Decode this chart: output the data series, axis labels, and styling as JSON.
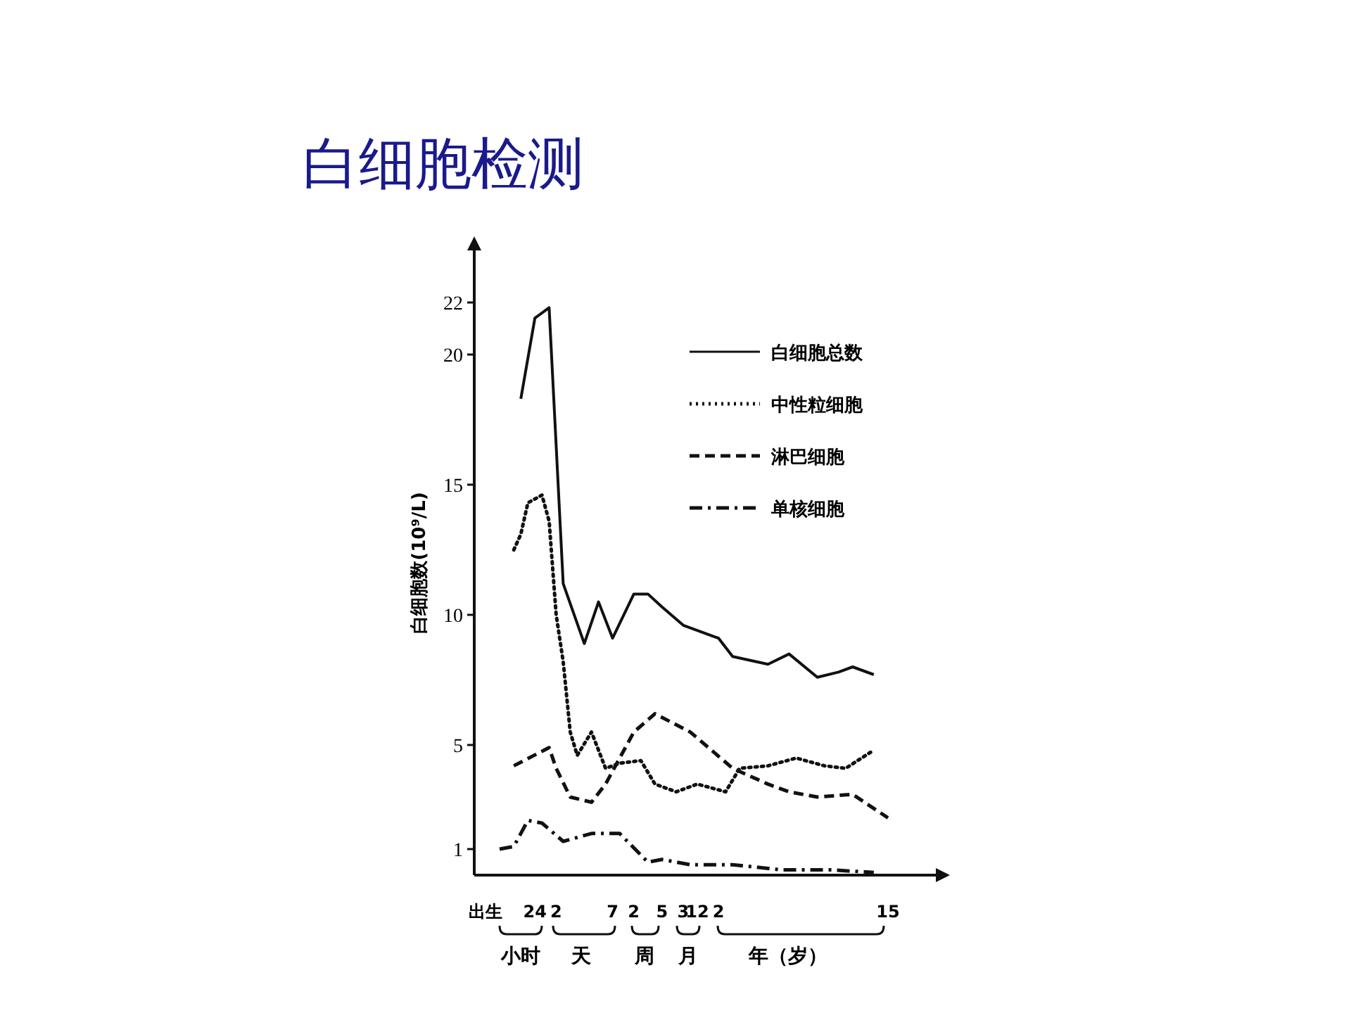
{
  "chart_data": {
    "type": "line",
    "title": "白细胞检测",
    "ylabel": "白细胞数(10⁹/L)",
    "categories": [
      "出生",
      null,
      null,
      null,
      null,
      null,
      null,
      "24",
      null,
      null,
      "2",
      null,
      null,
      null,
      null,
      null,
      null,
      null,
      "7",
      null,
      null,
      "2",
      null,
      null,
      null,
      "5",
      null,
      null,
      "3",
      null,
      "12",
      null,
      null,
      "2",
      null,
      null,
      null,
      null,
      null,
      null,
      null,
      null,
      null,
      null,
      null,
      null,
      null,
      null,
      null,
      null,
      null,
      null,
      null,
      null,
      null,
      null,
      null,
      "15",
      null
    ],
    "ylim": [
      0,
      24
    ],
    "yticks": [
      1,
      5,
      10,
      15,
      20,
      22
    ],
    "annotations": [
      "小时",
      "天",
      "周",
      "月",
      "年（岁）"
    ],
    "legend": "top right",
    "grid": false,
    "series": [
      {
        "name": "白细胞总数",
        "color": "#111111",
        "line_style": "solid",
        "values": [
          null,
          null,
          null,
          null,
          null,
          18.3,
          null,
          21.4,
          null,
          21.8,
          null,
          11.2,
          null,
          null,
          8.9,
          null,
          10.5,
          null,
          9.1,
          null,
          null,
          10.8,
          null,
          10.8,
          null,
          10.3,
          null,
          null,
          9.6,
          null,
          null,
          null,
          null,
          9.1,
          null,
          8.4,
          null,
          null,
          null,
          null,
          8.1,
          null,
          null,
          8.5,
          null,
          null,
          null,
          7.6,
          null,
          null,
          7.8,
          null,
          8.0,
          null,
          null,
          7.7,
          null,
          null,
          null
        ]
      },
      {
        "name": "中性粒细胞",
        "color": "#111111",
        "line_style": "dotted",
        "values": [
          null,
          null,
          null,
          null,
          12.5,
          13.1,
          14.3,
          null,
          14.6,
          13.6,
          10.0,
          8.2,
          5.5,
          4.6,
          null,
          5.5,
          null,
          4.1,
          null,
          4.3,
          null,
          null,
          4.4,
          null,
          3.5,
          null,
          null,
          3.2,
          null,
          null,
          3.5,
          null,
          null,
          null,
          3.2,
          null,
          4.1,
          null,
          null,
          null,
          4.2,
          null,
          null,
          null,
          4.5,
          null,
          null,
          null,
          4.2,
          null,
          null,
          4.1,
          null,
          null,
          null,
          4.8,
          null,
          null,
          null
        ]
      },
      {
        "name": "淋巴细胞",
        "color": "#111111",
        "line_style": "dashed",
        "values": [
          null,
          null,
          null,
          null,
          4.2,
          null,
          null,
          null,
          null,
          4.9,
          4.1,
          null,
          3.0,
          null,
          null,
          2.8,
          null,
          3.5,
          null,
          null,
          null,
          5.5,
          null,
          null,
          6.2,
          null,
          null,
          null,
          null,
          5.5,
          null,
          null,
          null,
          null,
          null,
          4.1,
          null,
          null,
          null,
          null,
          3.5,
          null,
          null,
          3.2,
          null,
          null,
          null,
          3.0,
          null,
          null,
          null,
          null,
          3.1,
          null,
          null,
          null,
          null,
          2.2,
          null
        ]
      },
      {
        "name": "单核细胞",
        "color": "#111111",
        "line_style": "dashdot",
        "values": [
          null,
          null,
          1.0,
          null,
          1.1,
          null,
          2.1,
          null,
          2.0,
          null,
          null,
          1.3,
          null,
          null,
          null,
          1.6,
          null,
          null,
          null,
          1.6,
          null,
          null,
          null,
          0.5,
          null,
          0.6,
          null,
          null,
          null,
          0.4,
          null,
          null,
          null,
          null,
          null,
          0.4,
          null,
          null,
          null,
          null,
          null,
          null,
          0.2,
          null,
          null,
          null,
          null,
          null,
          null,
          0.2,
          null,
          null,
          null,
          null,
          null,
          0.1,
          null,
          null,
          null
        ]
      }
    ]
  }
}
